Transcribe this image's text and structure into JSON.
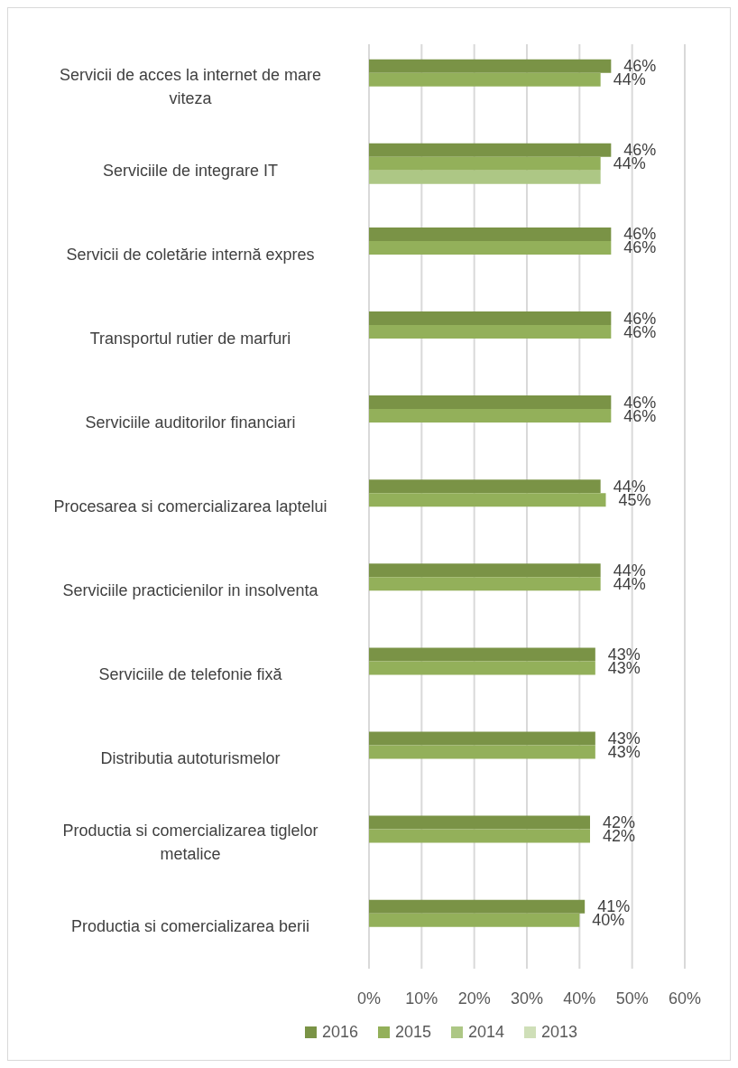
{
  "chart_data": {
    "type": "bar",
    "orientation": "horizontal",
    "categories": [
      "Servicii de acces la internet de mare viteza",
      "Serviciile de integrare IT",
      "Servicii de coletărie internă expres",
      "Transportul rutier de marfuri",
      "Serviciile auditorilor financiari",
      "Procesarea si comercializarea laptelui",
      "Serviciile practicienilor in insolventa",
      "Serviciile de telefonie fixă",
      "Distributia autoturismelor",
      "Productia si comercializarea tiglelor metalice",
      "Productia si comercializarea berii"
    ],
    "series": [
      {
        "name": "2016",
        "color": "#7a9346",
        "values": [
          46,
          46,
          46,
          46,
          46,
          44,
          44,
          43,
          43,
          42,
          41
        ],
        "value_labels": [
          "46%",
          "46%",
          "46%",
          "46%",
          "46%",
          "44%",
          "44%",
          "43%",
          "43%",
          "42%",
          "41%"
        ]
      },
      {
        "name": "2015",
        "color": "#93b05a",
        "values": [
          44,
          44,
          46,
          46,
          46,
          45,
          44,
          43,
          43,
          42,
          40
        ],
        "value_labels": [
          "44%",
          "44%",
          "46%",
          "46%",
          "46%",
          "45%",
          "44%",
          "43%",
          "43%",
          "42%",
          "40%"
        ]
      },
      {
        "name": "2014",
        "color": "#adc785",
        "values": [
          null,
          44,
          null,
          null,
          null,
          null,
          null,
          null,
          null,
          null,
          null
        ]
      },
      {
        "name": "2013",
        "color": "#cfdfb8",
        "values": [
          null,
          null,
          null,
          null,
          null,
          null,
          null,
          null,
          null,
          null,
          null
        ]
      }
    ],
    "xlim": [
      0,
      60
    ],
    "xticks": [
      {
        "value": 0,
        "label": "0%"
      },
      {
        "value": 10,
        "label": "10%"
      },
      {
        "value": 20,
        "label": "20%"
      },
      {
        "value": 30,
        "label": "30%"
      },
      {
        "value": 40,
        "label": "40%"
      },
      {
        "value": 50,
        "label": "50%"
      },
      {
        "value": 60,
        "label": "60%"
      }
    ],
    "grid": "x",
    "legend": "bottom"
  }
}
